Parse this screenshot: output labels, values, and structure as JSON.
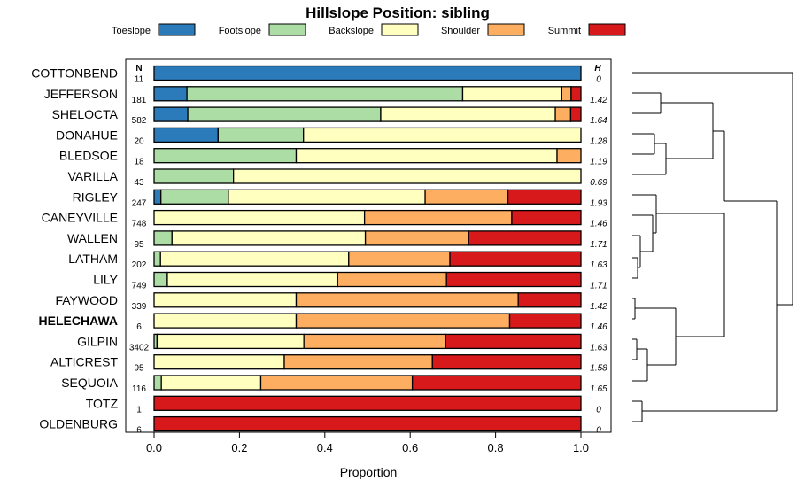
{
  "chart_data": {
    "type": "bar",
    "orientation": "horizontal",
    "stacked": true,
    "title": "Hillslope Position: sibling",
    "xlabel": "Proportion",
    "ylabel": "",
    "xlim": [
      0,
      1
    ],
    "xticks": [
      "0.0",
      "0.2",
      "0.4",
      "0.6",
      "0.8",
      "1.0"
    ],
    "legend_position": "top",
    "n_header": "N",
    "h_header": "H",
    "categories": [
      "COTTONBEND",
      "JEFFERSON",
      "SHELOCTA",
      "DONAHUE",
      "BLEDSOE",
      "VARILLA",
      "RIGLEY",
      "CANEYVILLE",
      "WALLEN",
      "LATHAM",
      "LILY",
      "FAYWOOD",
      "HELECHAWA",
      "GILPIN",
      "ALTICREST",
      "SEQUOIA",
      "TOTZ",
      "OLDENBURG"
    ],
    "highlight_category": "HELECHAWA",
    "n": [
      "11",
      "181",
      "582",
      "20",
      "18",
      "43",
      "247",
      "748",
      "95",
      "202",
      "749",
      "339",
      "6",
      "3402",
      "95",
      "116",
      "1",
      "6"
    ],
    "h": [
      "0",
      "1.42",
      "1.64",
      "1.28",
      "1.19",
      "0.69",
      "1.93",
      "1.46",
      "1.71",
      "1.63",
      "1.71",
      "1.42",
      "1.46",
      "1.63",
      "1.58",
      "1.65",
      "0",
      "0"
    ],
    "series": [
      {
        "name": "Toeslope",
        "color": "#2b7bba",
        "values": [
          1.0,
          0.077,
          0.079,
          0.15,
          0,
          0,
          0.016,
          0,
          0,
          0,
          0,
          0,
          0,
          0,
          0,
          0,
          0,
          0
        ]
      },
      {
        "name": "Footslope",
        "color": "#abdda4",
        "values": [
          0,
          0.646,
          0.452,
          0.2,
          0.333,
          0.186,
          0.158,
          0,
          0.042,
          0.015,
          0.031,
          0,
          0,
          0.007,
          0,
          0.017,
          0,
          0
        ]
      },
      {
        "name": "Backslope",
        "color": "#ffffbf",
        "values": [
          0,
          0.232,
          0.409,
          0.65,
          0.611,
          0.814,
          0.461,
          0.493,
          0.453,
          0.441,
          0.399,
          0.333,
          0.333,
          0.344,
          0.305,
          0.233,
          0,
          0
        ]
      },
      {
        "name": "Shoulder",
        "color": "#fdae61",
        "values": [
          0,
          0.022,
          0.036,
          0,
          0.056,
          0,
          0.194,
          0.345,
          0.242,
          0.237,
          0.255,
          0.52,
          0.5,
          0.332,
          0.347,
          0.355,
          0,
          0
        ]
      },
      {
        "name": "Summit",
        "color": "#d7191c",
        "values": [
          0,
          0.023,
          0.024,
          0,
          0,
          0,
          0.171,
          0.162,
          0.263,
          0.307,
          0.315,
          0.147,
          0.167,
          0.317,
          0.348,
          0.395,
          1.0,
          1.0
        ]
      }
    ]
  }
}
